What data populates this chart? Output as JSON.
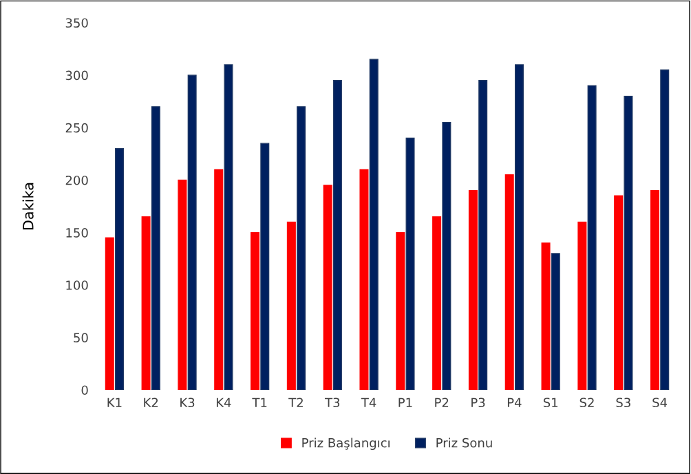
{
  "chart_data": {
    "type": "bar",
    "ylabel": "Dakika",
    "categories": [
      "K1",
      "K2",
      "K3",
      "K4",
      "T1",
      "T2",
      "T3",
      "T4",
      "P1",
      "P2",
      "P3",
      "P4",
      "S1",
      "S2",
      "S3",
      "S4"
    ],
    "series": [
      {
        "name": "Priz Başlangıcı",
        "color": "#ff0000",
        "values": [
          145,
          165,
          200,
          210,
          150,
          160,
          195,
          210,
          150,
          165,
          190,
          205,
          140,
          160,
          185,
          190
        ]
      },
      {
        "name": "Priz Sonu",
        "color": "#002060",
        "values": [
          230,
          270,
          300,
          310,
          235,
          270,
          295,
          315,
          240,
          255,
          295,
          310,
          130,
          290,
          280,
          305
        ]
      }
    ],
    "ylim": [
      0,
      350
    ],
    "yticks": [
      0,
      50,
      100,
      150,
      200,
      250,
      300,
      350
    ],
    "grid": false,
    "legend": "bottom"
  }
}
